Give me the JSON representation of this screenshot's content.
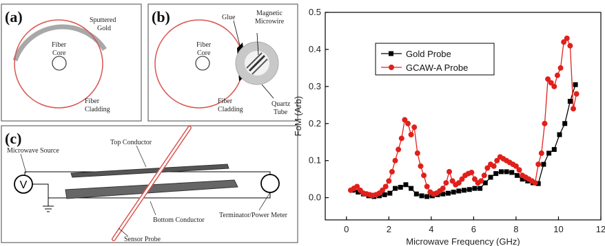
{
  "panels": {
    "a": {
      "letter": "(a)",
      "gold_label_1": "Sputtered",
      "gold_label_2": "Gold",
      "core_label_1": "Fiber",
      "core_label_2": "Core",
      "clad_label_1": "Fiber",
      "clad_label_2": "Cladding"
    },
    "b": {
      "letter": "(b)",
      "glue_label": "Glue",
      "wire_label_1": "Magnetic",
      "wire_label_2": "Microwire",
      "core_label_1": "Fiber",
      "core_label_2": "Core",
      "clad_label_1": "Fiber",
      "clad_label_2": "Cladding",
      "tube_label_1": "Quartz",
      "tube_label_2": "Tube"
    },
    "c": {
      "letter": "(c)",
      "source_label": "Microwave Source",
      "top_label": "Top Conductor",
      "bottom_label": "Bottom Conductor",
      "term_label": "Terminator/Power Meter",
      "probe_label": "Sensor Probe",
      "source_symbol": "V"
    }
  },
  "colors": {
    "gold_series": "#000000",
    "gcaw_series": "#e0201b",
    "fiber_red": "#d9534f",
    "gold_coat": "#a8a8a8"
  },
  "chart_data": {
    "type": "line",
    "xlabel": "Microwave Frequency (GHz)",
    "ylabel": "FoM (Arb)",
    "xlim": [
      -1,
      12
    ],
    "ylim": [
      -0.06,
      0.5
    ],
    "xticks": [
      0,
      2,
      4,
      6,
      8,
      10,
      12
    ],
    "yticks": [
      0.0,
      0.1,
      0.2,
      0.3,
      0.4,
      0.5
    ],
    "legend_position": "upper-left",
    "series": [
      {
        "name": "Gold Probe",
        "marker": "square",
        "color": "#000000",
        "x": [
          0.3,
          0.55,
          0.8,
          1.05,
          1.3,
          1.55,
          1.8,
          2.05,
          2.3,
          2.55,
          2.8,
          3.05,
          3.3,
          3.55,
          3.8,
          4.05,
          4.3,
          4.55,
          4.8,
          5.05,
          5.3,
          5.55,
          5.8,
          6.05,
          6.3,
          6.55,
          6.8,
          7.05,
          7.3,
          7.55,
          7.8,
          8.05,
          8.3,
          8.55,
          8.8,
          9.05,
          9.3,
          9.55,
          9.8,
          10.05,
          10.3,
          10.55,
          10.8
        ],
        "y": [
          0.02,
          0.015,
          0.01,
          0.005,
          0.003,
          0.005,
          0.008,
          0.012,
          0.025,
          0.028,
          0.035,
          0.025,
          0.01,
          0.005,
          0.003,
          0.005,
          0.008,
          0.01,
          0.012,
          0.015,
          0.018,
          0.02,
          0.022,
          0.025,
          0.025,
          0.04,
          0.055,
          0.065,
          0.07,
          0.07,
          0.068,
          0.06,
          0.05,
          0.045,
          0.04,
          0.038,
          0.09,
          0.12,
          0.13,
          0.17,
          0.2,
          0.26,
          0.305
        ]
      },
      {
        "name": "GCAW-A Probe",
        "marker": "circle",
        "color": "#e0201b",
        "x": [
          0.2,
          0.35,
          0.5,
          0.65,
          0.8,
          0.95,
          1.1,
          1.25,
          1.4,
          1.55,
          1.7,
          1.85,
          2.0,
          2.15,
          2.3,
          2.45,
          2.6,
          2.75,
          2.9,
          3.05,
          3.2,
          3.35,
          3.5,
          3.65,
          3.8,
          3.95,
          4.1,
          4.25,
          4.4,
          4.55,
          4.7,
          4.85,
          5.0,
          5.15,
          5.3,
          5.45,
          5.6,
          5.75,
          5.9,
          6.05,
          6.2,
          6.35,
          6.5,
          6.65,
          6.8,
          6.95,
          7.1,
          7.25,
          7.4,
          7.55,
          7.7,
          7.85,
          8.0,
          8.15,
          8.3,
          8.45,
          8.6,
          8.75,
          8.9,
          9.05,
          9.2,
          9.35,
          9.5,
          9.65,
          9.8,
          9.95,
          10.1,
          10.25,
          10.4,
          10.55,
          10.7,
          10.85
        ],
        "y": [
          0.02,
          0.025,
          0.03,
          0.02,
          0.012,
          0.01,
          0.008,
          0.006,
          0.008,
          0.012,
          0.02,
          0.03,
          0.045,
          0.07,
          0.1,
          0.13,
          0.16,
          0.21,
          0.2,
          0.17,
          0.19,
          0.12,
          0.085,
          0.06,
          0.03,
          0.015,
          0.01,
          0.012,
          0.018,
          0.025,
          0.04,
          0.07,
          0.045,
          0.035,
          0.04,
          0.05,
          0.06,
          0.065,
          0.068,
          0.05,
          0.04,
          0.045,
          0.06,
          0.08,
          0.09,
          0.085,
          0.1,
          0.11,
          0.105,
          0.1,
          0.095,
          0.09,
          0.085,
          0.075,
          0.06,
          0.055,
          0.05,
          0.045,
          0.04,
          0.09,
          0.12,
          0.2,
          0.32,
          0.31,
          0.3,
          0.33,
          0.35,
          0.42,
          0.43,
          0.41,
          0.24,
          0.28
        ]
      }
    ]
  }
}
